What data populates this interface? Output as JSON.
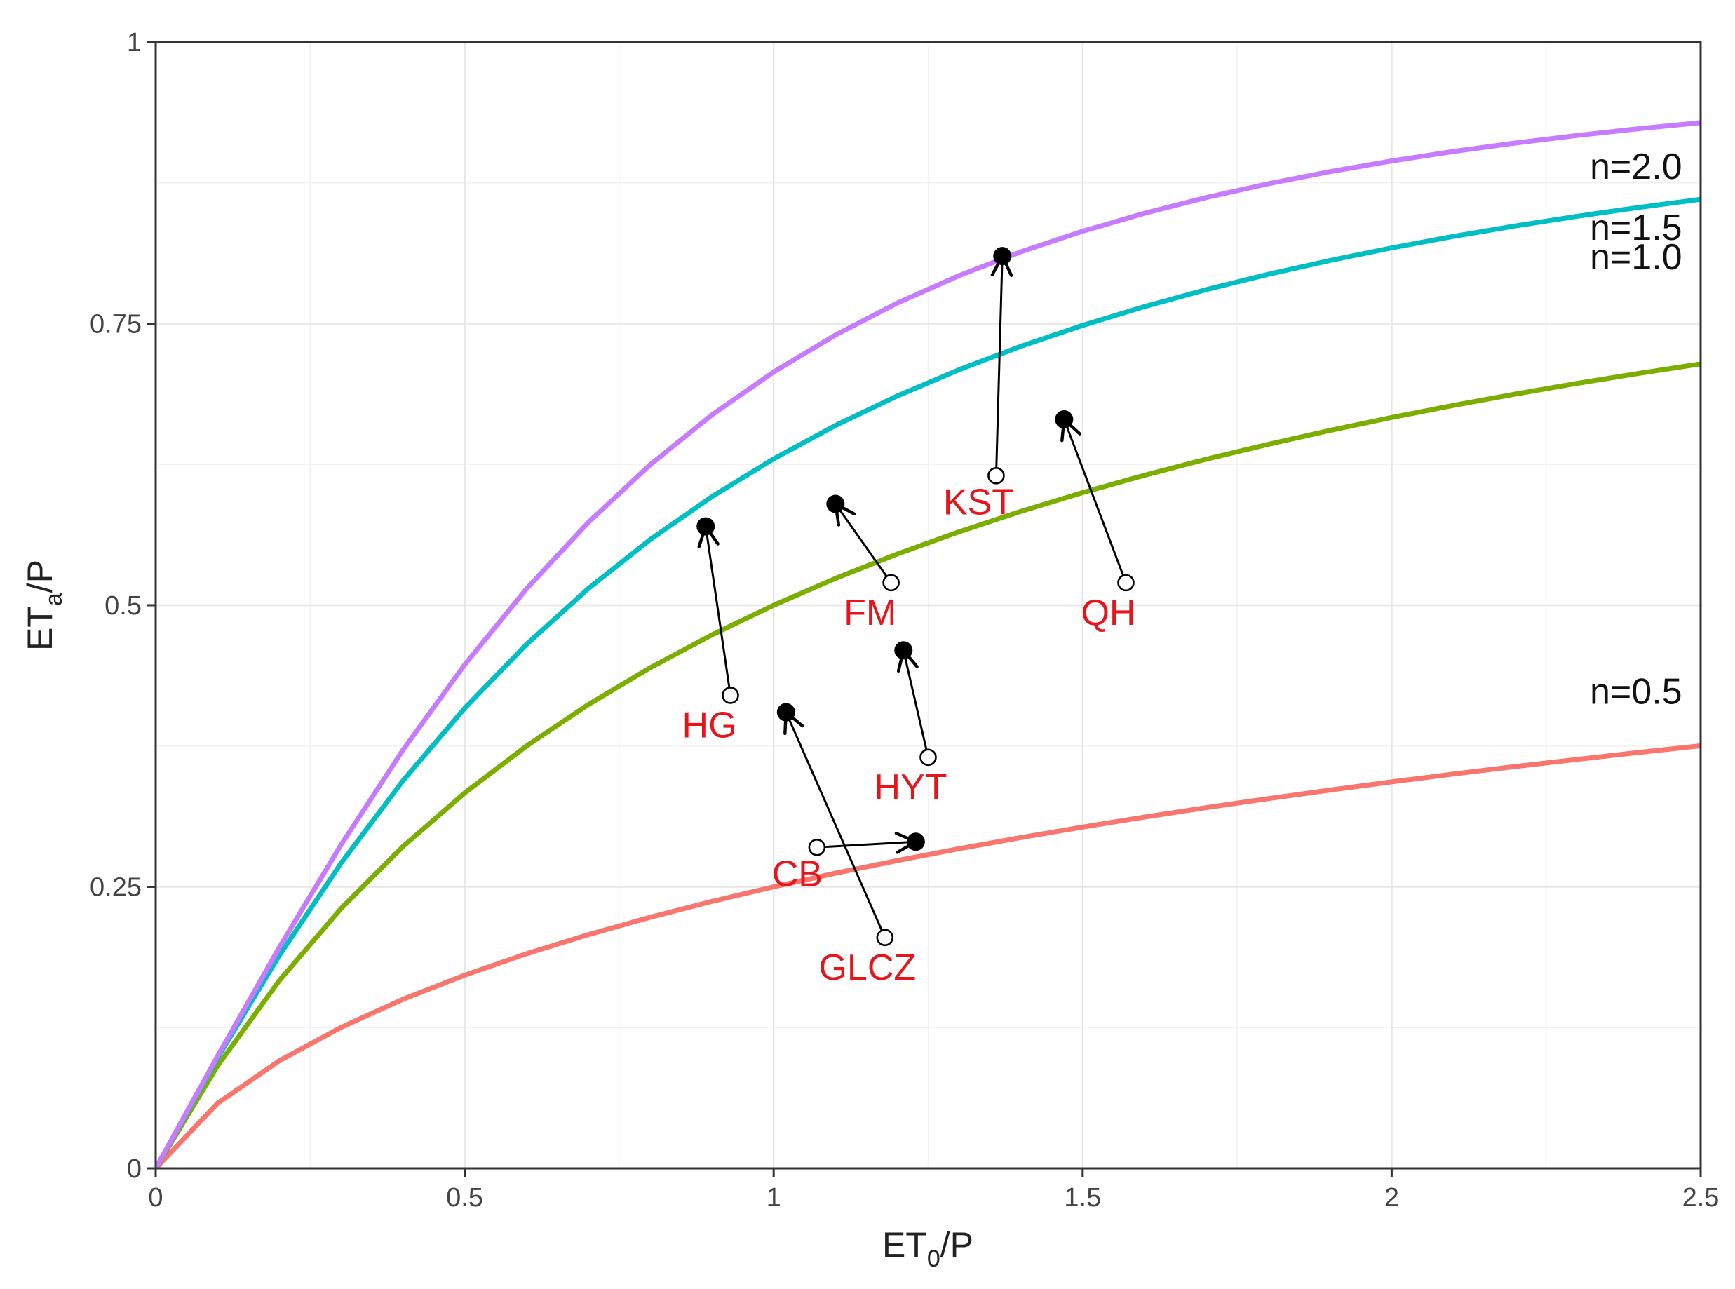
{
  "chart_data": {
    "type": "line",
    "xlabel": {
      "main": "ET",
      "sub": "0",
      "rest": "/P"
    },
    "ylabel": {
      "main": "ET",
      "sub": "a",
      "rest": "/P"
    },
    "xlim": [
      0,
      2.5
    ],
    "ylim": [
      0,
      1
    ],
    "x_ticks": [
      0,
      0.5,
      1,
      1.5,
      2,
      2.5
    ],
    "x_tick_labels": [
      "0",
      "0.5",
      "1",
      "1.5",
      "2",
      "2.5"
    ],
    "y_ticks": [
      0,
      0.25,
      0.5,
      0.75,
      1
    ],
    "y_tick_labels": [
      "0",
      "0.25",
      "0.5",
      "0.75",
      "1"
    ],
    "grid": true,
    "legend": "none",
    "series": [
      {
        "name": "n=0.5",
        "n": 0.5,
        "color": "#f8766d"
      },
      {
        "name": "n=1.0",
        "n": 1.0,
        "color": "#7cae00"
      },
      {
        "name": "n=1.5",
        "n": 1.5,
        "color": "#00bfc4"
      },
      {
        "name": "n=2.0",
        "n": 2.0,
        "color": "#c77cff"
      }
    ],
    "curve_formula": "y = x / (1 + x^n)^(1/n)",
    "shifts": [
      {
        "label": "HG",
        "from": [
          0.93,
          0.42
        ],
        "to": [
          0.89,
          0.57
        ]
      },
      {
        "label": "FM",
        "from": [
          1.19,
          0.52
        ],
        "to": [
          1.1,
          0.59
        ]
      },
      {
        "label": "QH",
        "from": [
          1.57,
          0.52
        ],
        "to": [
          1.47,
          0.665
        ]
      },
      {
        "label": "KST",
        "from": [
          1.36,
          0.615
        ],
        "to": [
          1.37,
          0.81
        ]
      },
      {
        "label": "HYT",
        "from": [
          1.25,
          0.365
        ],
        "to": [
          1.21,
          0.46
        ]
      },
      {
        "label": "GLCZ",
        "from": [
          1.18,
          0.205
        ],
        "to": [
          1.02,
          0.405
        ]
      },
      {
        "label": "CB",
        "from": [
          1.07,
          0.285
        ],
        "to": [
          1.23,
          0.29
        ]
      }
    ]
  }
}
